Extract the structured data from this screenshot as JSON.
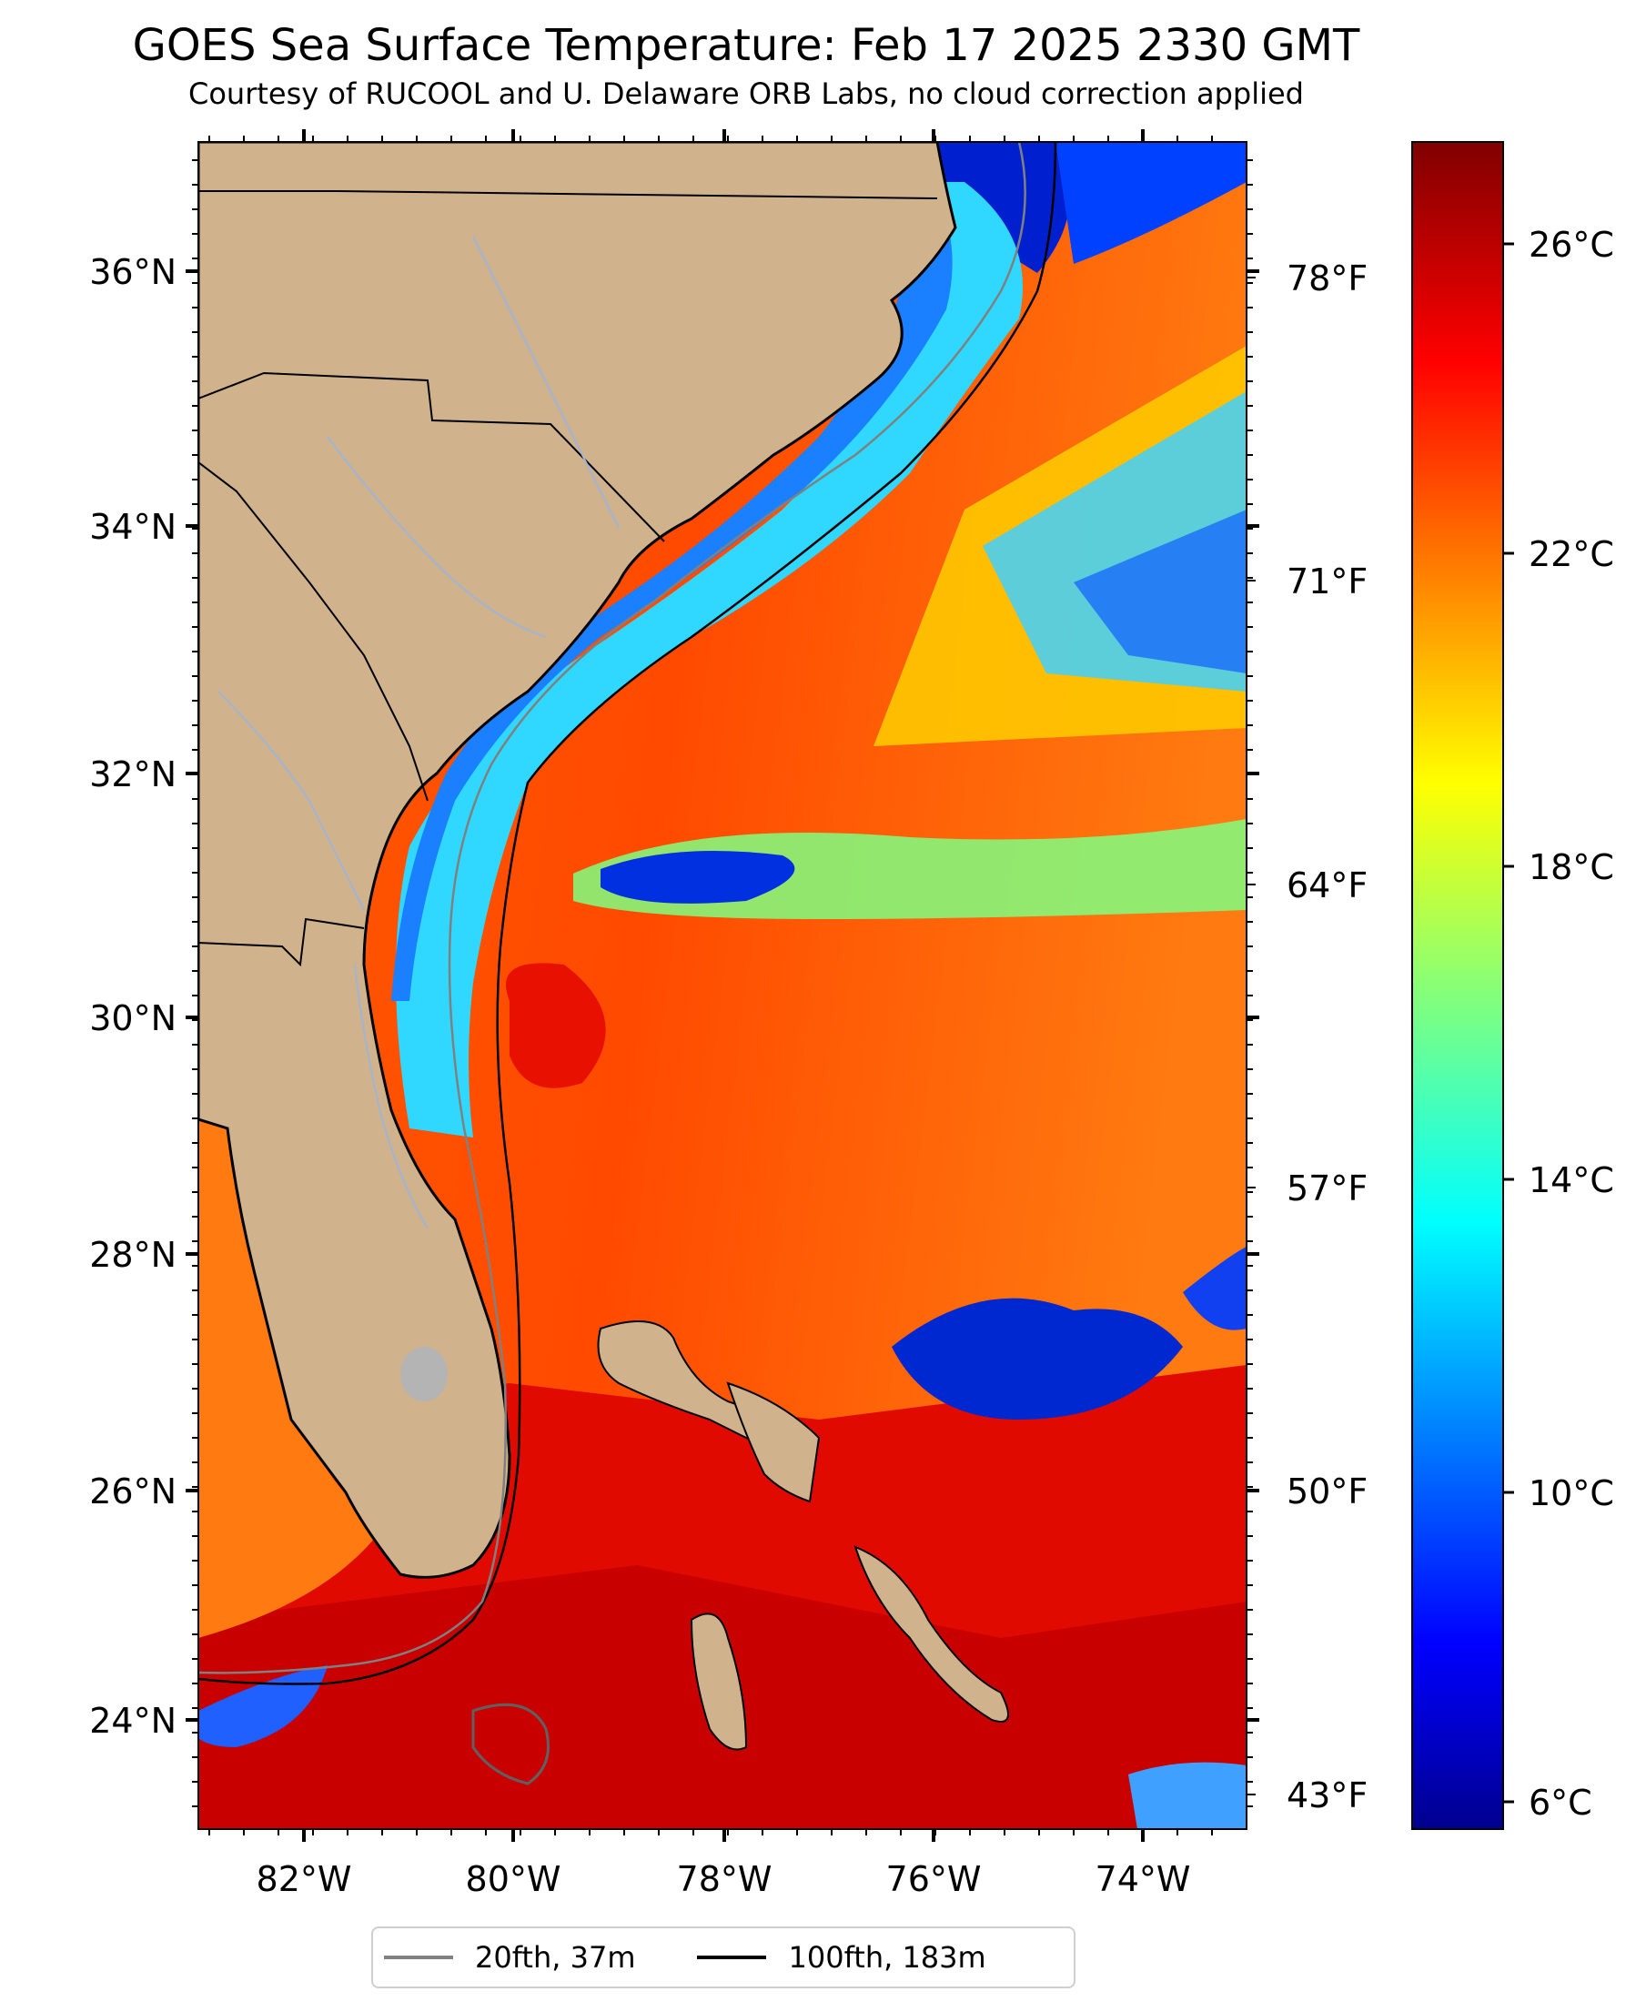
{
  "title": "GOES Sea Surface Temperature: Feb 17 2025 2330 GMT",
  "subtitle": "Courtesy of RUCOOL and U. Delaware ORB Labs, no cloud correction applied",
  "lat_labels": [
    "36°N",
    "34°N",
    "32°N",
    "30°N",
    "28°N",
    "26°N",
    "24°N"
  ],
  "lon_labels": [
    "82°W",
    "80°W",
    "78°W",
    "76°W",
    "74°W"
  ],
  "fahrenheit_labels": [
    "78°F",
    "71°F",
    "64°F",
    "57°F",
    "50°F",
    "43°F"
  ],
  "colorbar": {
    "labels": [
      "26°C",
      "22°C",
      "18°C",
      "14°C",
      "10°C",
      "6°C"
    ],
    "colormap": "jet",
    "range_c": [
      5.5,
      27.8
    ]
  },
  "legend": {
    "items": [
      {
        "label": "20fth, 37m",
        "color": "#808080"
      },
      {
        "label": "100fth, 183m",
        "color": "#000000"
      }
    ]
  },
  "colors": {
    "land": "#d0b28c",
    "land_border": "#000000",
    "rivers": "#9fb5d6",
    "contour_20fth": "#808080",
    "contour_100fth": "#000000"
  }
}
